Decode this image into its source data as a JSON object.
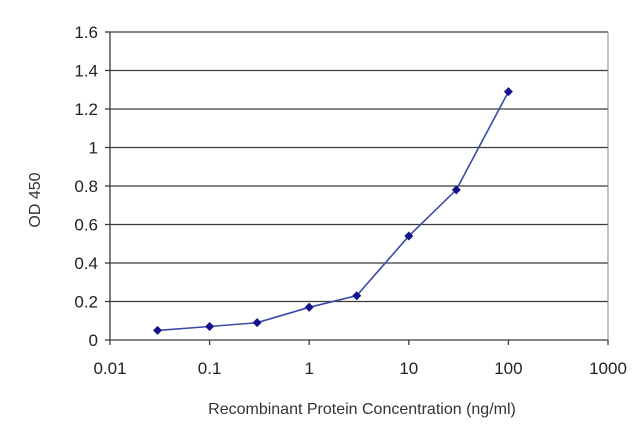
{
  "chart_data": {
    "type": "line",
    "title": "",
    "xlabel": "Recombinant Protein Concentration (ng/ml)",
    "ylabel": "OD 450",
    "x_scale": "log",
    "xlim": [
      0.01,
      1000
    ],
    "ylim": [
      0,
      1.6
    ],
    "x_ticks": [
      0.01,
      0.1,
      1,
      10,
      100,
      1000
    ],
    "x_tick_labels": [
      "0.01",
      "0.1",
      "1",
      "10",
      "100",
      "1000"
    ],
    "y_ticks": [
      0,
      0.2,
      0.4,
      0.6,
      0.8,
      1,
      1.2,
      1.4,
      1.6
    ],
    "y_tick_labels": [
      "0",
      "0.2",
      "0.4",
      "0.6",
      "0.8",
      "1",
      "1.2",
      "1.4",
      "1.6"
    ],
    "grid": "horizontal",
    "legend": "none",
    "series": [
      {
        "color": "#3a4aa8",
        "marker_color": "#14148a",
        "points": [
          {
            "x": 0.03,
            "y": 0.05
          },
          {
            "x": 0.1,
            "y": 0.07
          },
          {
            "x": 0.3,
            "y": 0.09
          },
          {
            "x": 1,
            "y": 0.17
          },
          {
            "x": 3,
            "y": 0.23
          },
          {
            "x": 10,
            "y": 0.54
          },
          {
            "x": 30,
            "y": 0.78
          },
          {
            "x": 100,
            "y": 1.29
          }
        ]
      }
    ]
  }
}
